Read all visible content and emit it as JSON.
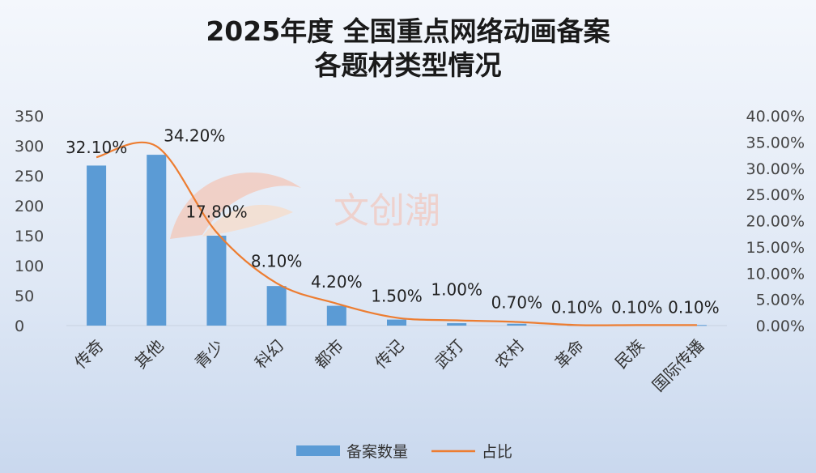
{
  "chart_data": {
    "type": "bar",
    "title": "2025年度 全国重点网络动画备案",
    "subtitle": "各题材类型情况",
    "categories": [
      "传奇",
      "其他",
      "青少",
      "科幻",
      "都市",
      "传记",
      "武打",
      "农村",
      "革命",
      "民族",
      "国际传播"
    ],
    "series": [
      {
        "name": "备案数量",
        "type": "bar",
        "axis": "left",
        "color": "#5b9bd5",
        "values": [
          267,
          285,
          150,
          66,
          33,
          10,
          4,
          3,
          1,
          1,
          1
        ]
      },
      {
        "name": "占比",
        "type": "line",
        "axis": "right",
        "color": "#ed7d31",
        "values": [
          32.1,
          34.2,
          17.8,
          8.1,
          4.2,
          1.5,
          1.0,
          0.7,
          0.1,
          0.1,
          0.1
        ],
        "labels": [
          "32.10%",
          "34.20%",
          "17.80%",
          "8.10%",
          "4.20%",
          "1.50%",
          "1.00%",
          "0.70%",
          "0.10%",
          "0.10%",
          "0.10%"
        ]
      }
    ],
    "y_left": {
      "min": 0,
      "max": 350,
      "ticks": [
        "0",
        "50",
        "100",
        "150",
        "200",
        "250",
        "300",
        "350"
      ]
    },
    "y_right": {
      "min": 0,
      "max": 40,
      "ticks": [
        "0.00%",
        "5.00%",
        "10.00%",
        "15.00%",
        "20.00%",
        "25.00%",
        "30.00%",
        "35.00%",
        "40.00%"
      ]
    },
    "grid": false,
    "legend": {
      "position": "bottom",
      "items": [
        "备案数量",
        "占比"
      ]
    },
    "watermark": "文创潮"
  }
}
